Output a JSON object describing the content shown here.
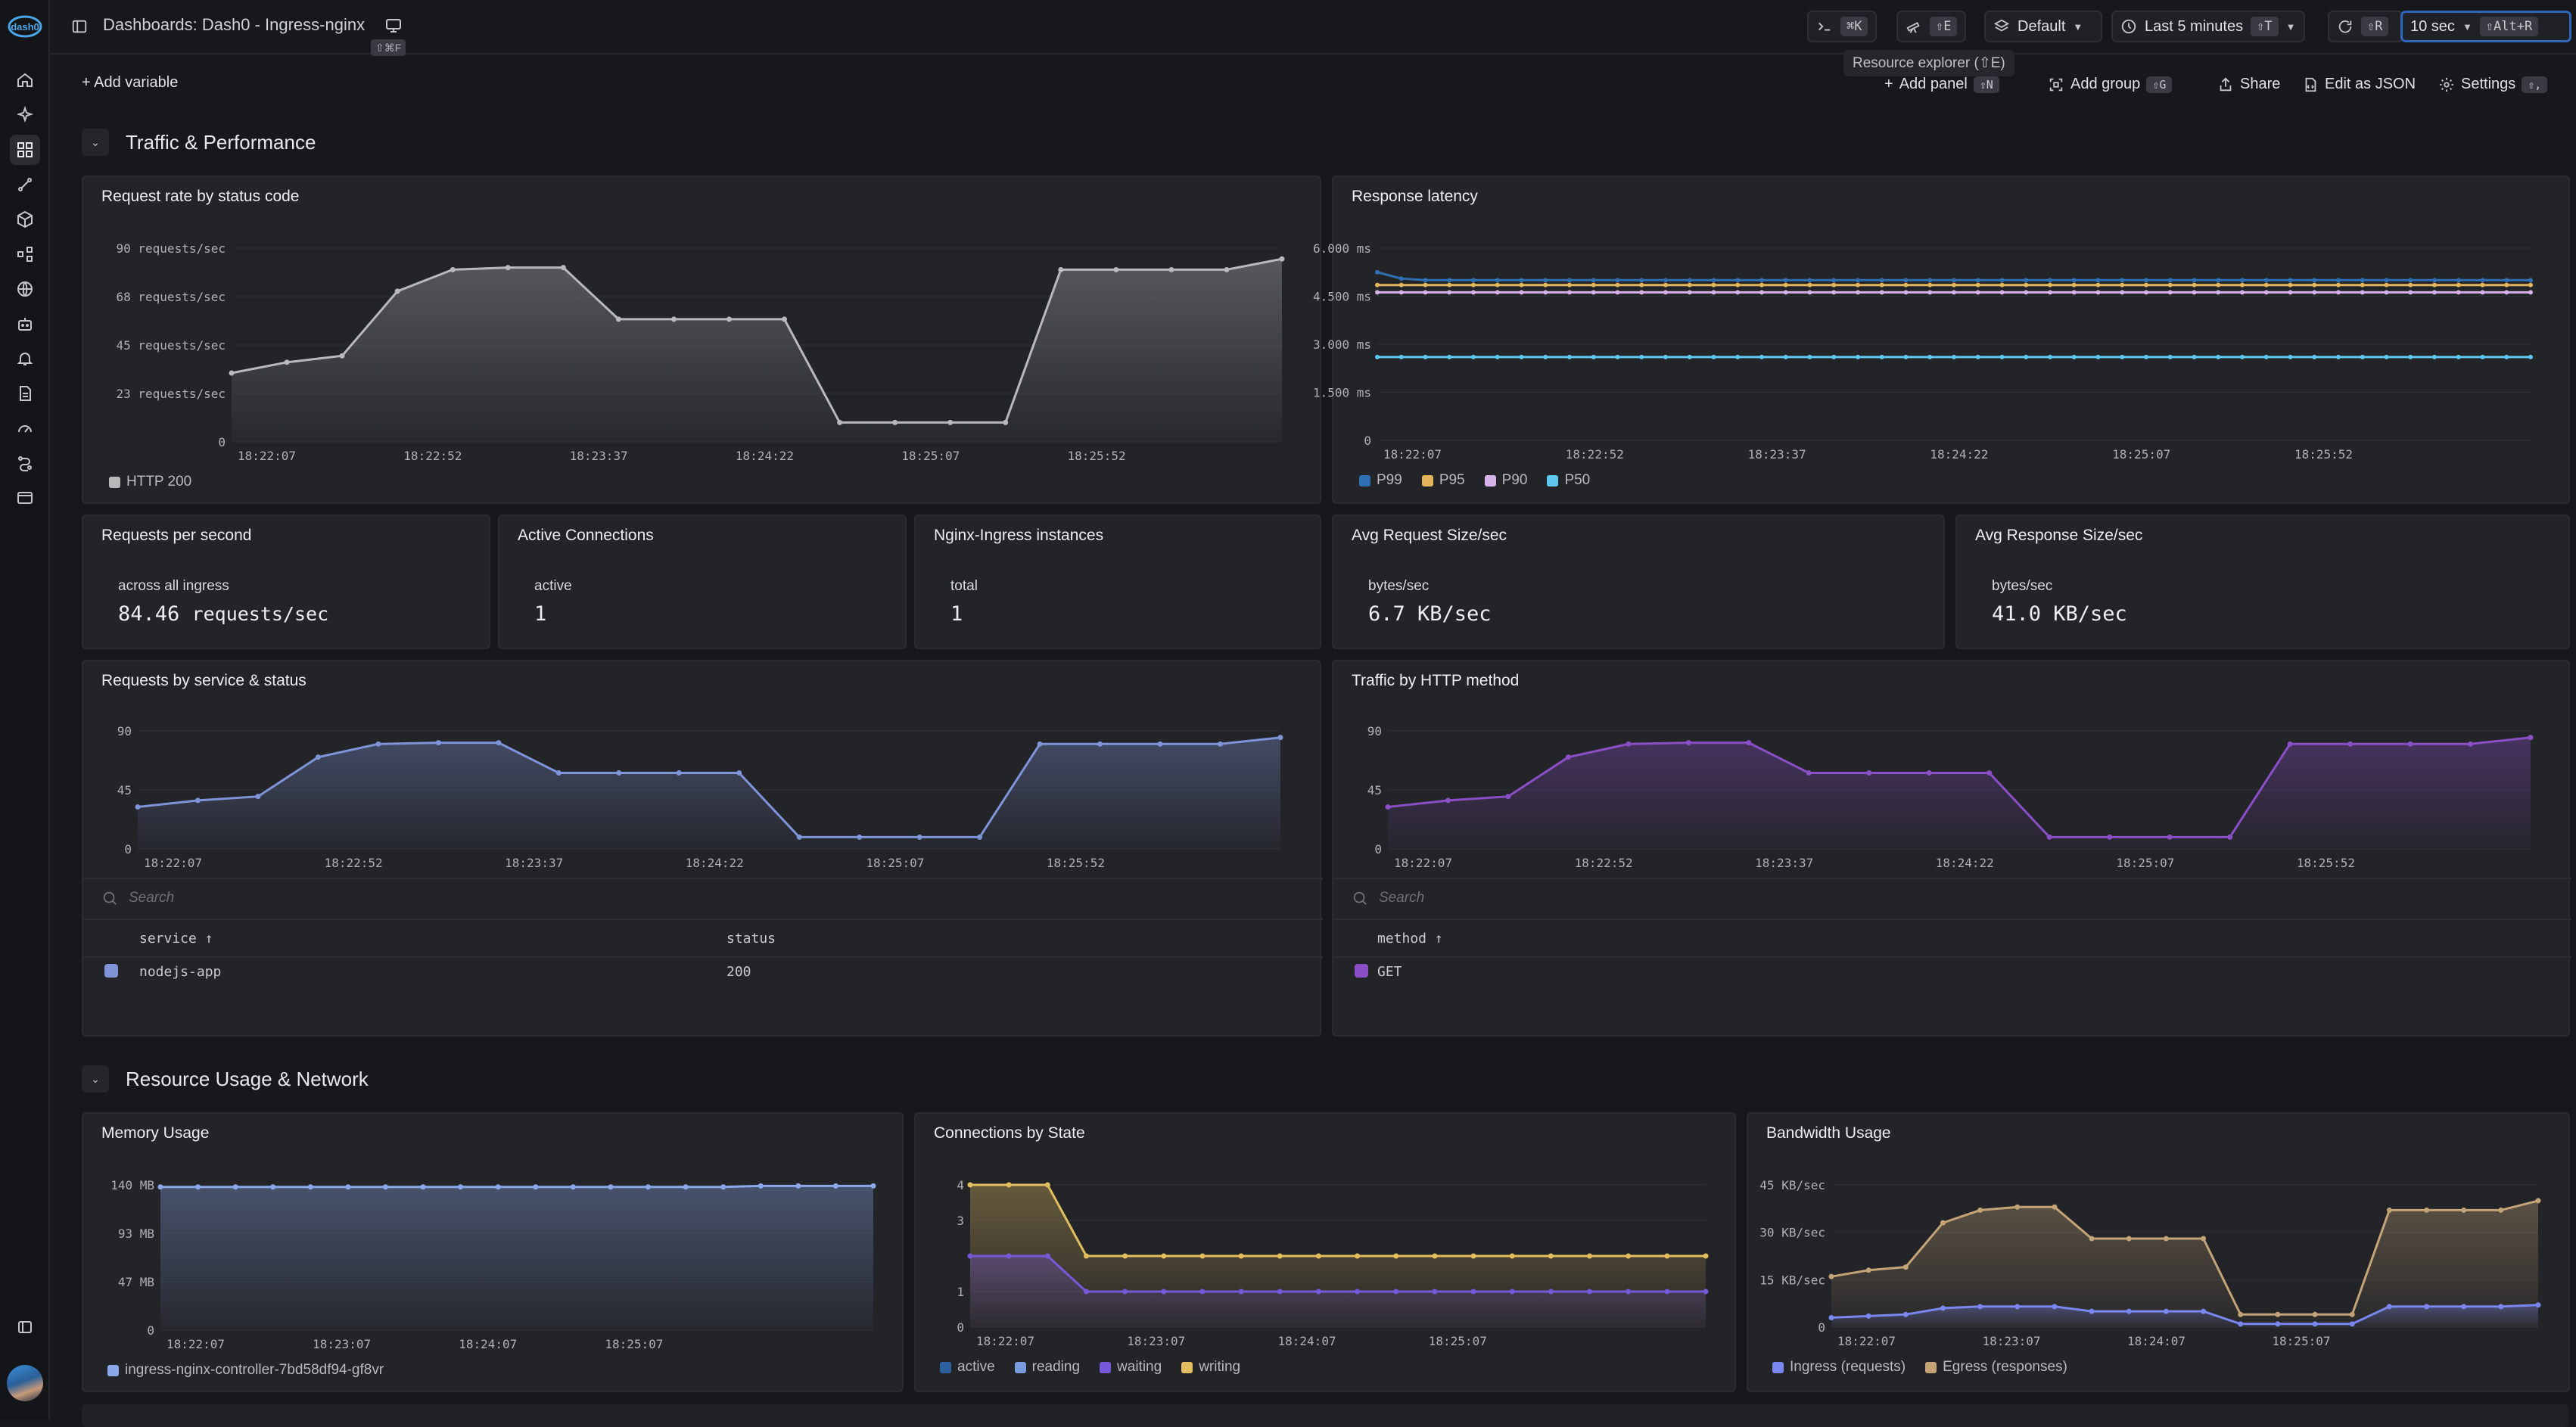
{
  "header": {
    "crumb": "Dashboards:",
    "dashboard": "Dash0 - Ingress-nginx",
    "present_kbd": "⇧⌘F"
  },
  "toolbar": {
    "cmd_kbd": "⌘K",
    "explorer_kbd": "⇧E",
    "dataset": "Default",
    "timerange": "Last 5 minutes",
    "timerange_kbd": "⇧T",
    "refresh_kbd": "⇧R",
    "interval": "10 sec",
    "interval_kbd": "⇧Alt+R"
  },
  "tooltip": "Resource explorer (⇧E)",
  "actions": {
    "add_variable": "Add variable",
    "add_panel": "Add panel",
    "add_panel_kbd": "⇧N",
    "add_group": "Add group",
    "add_group_kbd": "⇧G",
    "share": "Share",
    "edit_json": "Edit as JSON",
    "settings": "Settings",
    "settings_kbd": "⇧,"
  },
  "sections": [
    "Traffic & Performance",
    "Resource Usage & Network"
  ],
  "panels": {
    "req_rate": {
      "title": "Request rate by status code",
      "legend": [
        "HTTP 200"
      ],
      "yticks": [
        "90 requests/sec",
        "68 requests/sec",
        "45 requests/sec",
        "23 requests/sec",
        "0"
      ]
    },
    "latency": {
      "title": "Response latency",
      "legend": [
        "P99",
        "P95",
        "P90",
        "P50"
      ],
      "yticks": [
        "6.000 ms",
        "4.500 ms",
        "3.000 ms",
        "1.500 ms",
        "0"
      ]
    },
    "rps": {
      "title": "Requests per second",
      "label": "across all ingress",
      "value": "84.46",
      "unit": "requests/sec"
    },
    "active_conn": {
      "title": "Active Connections",
      "label": "active",
      "value": "1"
    },
    "instances": {
      "title": "Nginx-Ingress instances",
      "label": "total",
      "value": "1"
    },
    "req_size": {
      "title": "Avg Request Size/sec",
      "label": "bytes/sec",
      "value": "6.7 KB/sec"
    },
    "resp_size": {
      "title": "Avg Response Size/sec",
      "label": "bytes/sec",
      "value": "41.0 KB/sec"
    },
    "by_service": {
      "title": "Requests by service & status",
      "yticks": [
        "90",
        "45",
        "0"
      ],
      "search": "Search",
      "columns": [
        "service ↑",
        "status"
      ],
      "rows": [
        [
          "nodejs-app",
          "200"
        ]
      ]
    },
    "by_method": {
      "title": "Traffic by HTTP method",
      "yticks": [
        "90",
        "45",
        "0"
      ],
      "search": "Search",
      "columns": [
        "method ↑"
      ],
      "rows": [
        [
          "GET"
        ]
      ]
    },
    "memory": {
      "title": "Memory Usage",
      "yticks": [
        "140 MB",
        "93 MB",
        "47 MB",
        "0"
      ],
      "legend": [
        "ingress-nginx-controller-7bd58df94-gf8vr"
      ]
    },
    "conn_state": {
      "title": "Connections by State",
      "yticks": [
        "4",
        "3",
        "1",
        "0"
      ],
      "legend": [
        "active",
        "reading",
        "waiting",
        "writing"
      ]
    },
    "bandwidth": {
      "title": "Bandwidth Usage",
      "yticks": [
        "45 KB/sec",
        "30 KB/sec",
        "15 KB/sec",
        "0"
      ],
      "legend": [
        "Ingress (requests)",
        "Egress (responses)"
      ]
    }
  },
  "xticks6": [
    "18:22:07",
    "18:22:52",
    "18:23:37",
    "18:24:22",
    "18:25:07",
    "18:25:52"
  ],
  "xticks4": [
    "18:22:07",
    "18:23:07",
    "18:24:07",
    "18:25:07"
  ],
  "colors": {
    "http200": "#b9b9bc",
    "p99": "#2f6fb3",
    "p95": "#e3b65c",
    "p90": "#d6b2e8",
    "p50": "#5fc9f0",
    "service": "#7f94d8",
    "method": "#8a4fc7",
    "memory": "#8aa8ea",
    "active": "#2c5f9e",
    "reading": "#7b9be0",
    "waiting": "#7559d9",
    "writing": "#e2be5e",
    "ingress": "#7b87f0",
    "egress": "#c4a477"
  },
  "chart_data": [
    {
      "type": "area",
      "title": "Request rate by status code",
      "ylim": [
        0,
        90
      ],
      "series": [
        {
          "name": "HTTP 200",
          "values": [
            32,
            37,
            40,
            70,
            80,
            81,
            81,
            57,
            57,
            57,
            57,
            9,
            9,
            9,
            9,
            80,
            80,
            80,
            80,
            85
          ]
        }
      ]
    },
    {
      "type": "line",
      "title": "Response latency",
      "ylim": [
        0,
        6
      ],
      "series": [
        {
          "name": "P99",
          "values": [
            5.25,
            5.05,
            5.0,
            5.0,
            5.0,
            5.0,
            5.0,
            5.0,
            5.0,
            5.0,
            5.0,
            5.0,
            5.0,
            5.0,
            5.0,
            5.0,
            5.0,
            5.0,
            5.0,
            5.0,
            5.0,
            5.0,
            5.0,
            5.0,
            5.0,
            5.0,
            5.0,
            5.0,
            5.0,
            5.0,
            5.0,
            5.0,
            5.0,
            5.0,
            5.0,
            5.0,
            5.0,
            5.0,
            5.0,
            5.0,
            5.0,
            5.0,
            5.0,
            5.0,
            5.0,
            5.0,
            5.0,
            5.0,
            5.0
          ]
        },
        {
          "name": "P95",
          "values": [
            4.85,
            4.85,
            4.85,
            4.85,
            4.85,
            4.85,
            4.85,
            4.85,
            4.85,
            4.85,
            4.85,
            4.85,
            4.85,
            4.85,
            4.85,
            4.85,
            4.85,
            4.85,
            4.85,
            4.85,
            4.85,
            4.85,
            4.85,
            4.85,
            4.85,
            4.85,
            4.85,
            4.85,
            4.85,
            4.85,
            4.85,
            4.85,
            4.85,
            4.85,
            4.85,
            4.85,
            4.85,
            4.85,
            4.85,
            4.85,
            4.85,
            4.85,
            4.85,
            4.85,
            4.85,
            4.85,
            4.85,
            4.85,
            4.85
          ]
        },
        {
          "name": "P90",
          "values": [
            4.62,
            4.62,
            4.62,
            4.62,
            4.62,
            4.62,
            4.62,
            4.62,
            4.62,
            4.62,
            4.62,
            4.62,
            4.62,
            4.62,
            4.62,
            4.62,
            4.62,
            4.62,
            4.62,
            4.62,
            4.62,
            4.62,
            4.62,
            4.62,
            4.62,
            4.62,
            4.62,
            4.62,
            4.62,
            4.62,
            4.62,
            4.62,
            4.62,
            4.62,
            4.62,
            4.62,
            4.62,
            4.62,
            4.62,
            4.62,
            4.62,
            4.62,
            4.62,
            4.62,
            4.62,
            4.62,
            4.62,
            4.62,
            4.62
          ]
        },
        {
          "name": "P50",
          "values": [
            2.6,
            2.6,
            2.6,
            2.6,
            2.6,
            2.6,
            2.6,
            2.6,
            2.6,
            2.6,
            2.6,
            2.6,
            2.6,
            2.6,
            2.6,
            2.6,
            2.6,
            2.6,
            2.6,
            2.6,
            2.6,
            2.6,
            2.6,
            2.6,
            2.6,
            2.6,
            2.6,
            2.6,
            2.6,
            2.6,
            2.6,
            2.6,
            2.6,
            2.6,
            2.6,
            2.6,
            2.6,
            2.6,
            2.6,
            2.6,
            2.6,
            2.6,
            2.6,
            2.6,
            2.6,
            2.6,
            2.6,
            2.6,
            2.6
          ]
        }
      ]
    },
    {
      "type": "area",
      "title": "Requests by service & status",
      "ylim": [
        0,
        90
      ],
      "series": [
        {
          "name": "nodejs-app",
          "values": [
            32,
            37,
            40,
            70,
            80,
            81,
            81,
            58,
            58,
            58,
            58,
            9,
            9,
            9,
            9,
            80,
            80,
            80,
            80,
            85
          ]
        }
      ]
    },
    {
      "type": "area",
      "title": "Traffic by HTTP method",
      "ylim": [
        0,
        90
      ],
      "series": [
        {
          "name": "GET",
          "values": [
            32,
            37,
            40,
            70,
            80,
            81,
            81,
            58,
            58,
            58,
            58,
            9,
            9,
            9,
            9,
            80,
            80,
            80,
            80,
            85
          ]
        }
      ]
    },
    {
      "type": "line",
      "title": "Memory Usage",
      "ylim": [
        0,
        140
      ],
      "series": [
        {
          "name": "ingress-nginx-controller-7bd58df94-gf8vr",
          "values": [
            138,
            138,
            138,
            138,
            138,
            138,
            138,
            138,
            138,
            138,
            138,
            138,
            138,
            138,
            138,
            138,
            139,
            139,
            139,
            139
          ]
        }
      ]
    },
    {
      "type": "area",
      "title": "Connections by State",
      "ylim": [
        0,
        4
      ],
      "series": [
        {
          "name": "writing",
          "values": [
            4,
            4,
            4,
            2,
            2,
            2,
            2,
            2,
            2,
            2,
            2,
            2,
            2,
            2,
            2,
            2,
            2,
            2,
            2,
            2
          ]
        },
        {
          "name": "waiting",
          "values": [
            2,
            2,
            2,
            1,
            1,
            1,
            1,
            1,
            1,
            1,
            1,
            1,
            1,
            1,
            1,
            1,
            1,
            1,
            1,
            1
          ]
        }
      ]
    },
    {
      "type": "area",
      "title": "Bandwidth Usage",
      "ylim": [
        0,
        45
      ],
      "series": [
        {
          "name": "Egress (responses)",
          "values": [
            16,
            18,
            19,
            33,
            37,
            38,
            38,
            28,
            28,
            28,
            28,
            4,
            4,
            4,
            4,
            37,
            37,
            37,
            37,
            40
          ]
        },
        {
          "name": "Ingress (requests)",
          "values": [
            3,
            3.5,
            4,
            6,
            6.5,
            6.5,
            6.5,
            5,
            5,
            5,
            5,
            1,
            1,
            1,
            1,
            6.5,
            6.5,
            6.5,
            6.5,
            7
          ]
        }
      ]
    }
  ]
}
